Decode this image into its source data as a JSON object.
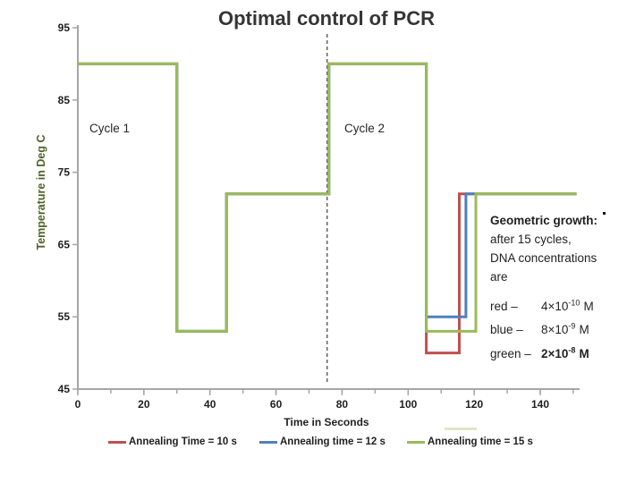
{
  "title": "Optimal control of PCR",
  "chart_data": {
    "type": "line",
    "title": "Optimal control of PCR",
    "xlabel": "Time in Seconds",
    "ylabel": "Temperature in Deg C",
    "xlim": [
      0,
      140
    ],
    "ylim": [
      45,
      95
    ],
    "x_ticks": [
      0,
      20,
      40,
      60,
      80,
      100,
      120,
      140
    ],
    "x_minor_tick_step": 10,
    "y_ticks": [
      95,
      85,
      75,
      65,
      55,
      45
    ],
    "grid": "off",
    "legend_position": "bottom",
    "series": [
      {
        "name": "Annealing Time = 10 s",
        "color": "#C0504D",
        "points": [
          [
            0,
            90
          ],
          [
            30,
            90
          ],
          [
            30,
            53
          ],
          [
            45,
            53
          ],
          [
            45,
            72
          ],
          [
            76,
            72
          ],
          [
            76,
            90
          ],
          [
            105.5,
            90
          ],
          [
            105.5,
            50
          ],
          [
            115.5,
            50
          ],
          [
            115.5,
            72
          ],
          [
            151,
            72
          ]
        ]
      },
      {
        "name": "Annealing time = 12 s",
        "color": "#4F81BD",
        "points": [
          [
            0,
            90
          ],
          [
            30,
            90
          ],
          [
            30,
            53
          ],
          [
            45,
            53
          ],
          [
            45,
            72
          ],
          [
            76,
            72
          ],
          [
            76,
            90
          ],
          [
            105.5,
            90
          ],
          [
            105.5,
            55
          ],
          [
            117.5,
            55
          ],
          [
            117.5,
            72
          ],
          [
            151,
            72
          ]
        ]
      },
      {
        "name": "Annealing time = 15 s",
        "color": "#9BBB59",
        "points": [
          [
            0,
            90
          ],
          [
            30,
            90
          ],
          [
            30,
            53
          ],
          [
            45,
            53
          ],
          [
            45,
            72
          ],
          [
            76,
            72
          ],
          [
            76,
            90
          ],
          [
            105.5,
            90
          ],
          [
            105.5,
            53
          ],
          [
            120.5,
            53
          ],
          [
            120.5,
            72
          ],
          [
            151,
            72
          ]
        ]
      }
    ],
    "annotations": {
      "cycle1": "Cycle 1",
      "cycle2": "Cycle 2",
      "dashed_line_time": 75.5
    }
  },
  "legend": [
    {
      "label": "Annealing Time = 10 s",
      "color": "#C0504D"
    },
    {
      "label": "Annealing time = 12 s",
      "color": "#4F81BD"
    },
    {
      "label": "Annealing time = 15 s",
      "color": "#9BBB59"
    }
  ],
  "note": {
    "heading": "Geometric growth:",
    "lines": [
      "after 15 cycles,",
      "DNA concentrations",
      "are"
    ],
    "entries": [
      {
        "label": "red –",
        "base": "4×10",
        "exp": "-10",
        "unit": "M"
      },
      {
        "label": "blue –",
        "base": "8×10",
        "exp": "-9",
        "unit": "M"
      },
      {
        "label": "green –",
        "base": "2×10",
        "exp": "-8",
        "unit": "M"
      }
    ]
  },
  "colors": {
    "accent_red": "#C0504D",
    "accent_blue": "#4F81BD",
    "accent_green": "#9BBB59",
    "axis_gray": "#A6A6A6",
    "text_dark": "#1F1F1F",
    "y_axis_title_green": "#4F6228",
    "dashed_line": "#1A1A1A"
  }
}
